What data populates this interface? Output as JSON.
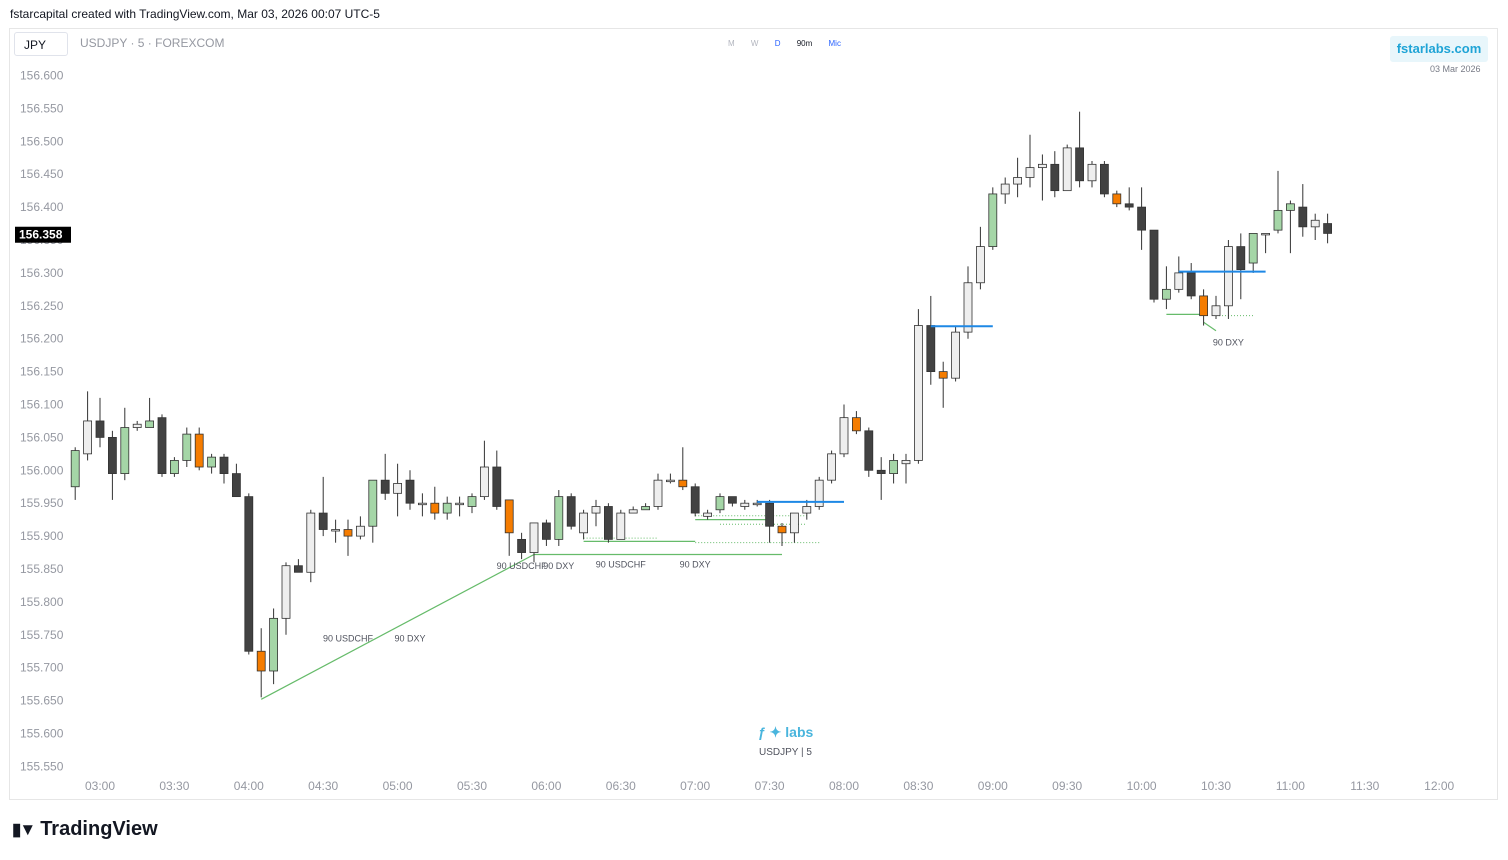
{
  "header": {
    "text": "fstarcapital created with TradingView.com, Mar 03, 2026 00:07 UTC-5"
  },
  "currency_chip": "JPY",
  "symbol_line": "USDJPY · 5 · FOREXCOM",
  "timeframes": [
    "M",
    "W",
    "D",
    "90m",
    "Mic"
  ],
  "brand": {
    "label": "fstarlabs.com",
    "date": "03 Mar 2026",
    "color": "#1fa4d6"
  },
  "watermark": {
    "logo": "ƒ ✦ labs",
    "symbol": "USDJPY | 5"
  },
  "footer_logo": {
    "icon": "tradingview-logo-icon",
    "text": "TradingView"
  },
  "colors": {
    "bull": "#a5d6a7",
    "bear": "#424242",
    "neutral": "#eeeeee",
    "special": "#f57c00",
    "level": "#1e88e5",
    "divergence": "#66bb6a",
    "price_label_bg": "#000000"
  },
  "chart_data": {
    "type": "candlestick",
    "symbol": "USDJPY",
    "interval": "5",
    "ylim": [
      155.55,
      156.6
    ],
    "y_ticks": [
      "156.600",
      "156.550",
      "156.500",
      "156.450",
      "156.400",
      "156.350",
      "156.300",
      "156.250",
      "156.200",
      "156.150",
      "156.100",
      "156.050",
      "156.000",
      "155.950",
      "155.900",
      "155.850",
      "155.800",
      "155.750",
      "155.700",
      "155.650",
      "155.600",
      "155.550"
    ],
    "x_ticks": [
      "03:00",
      "03:30",
      "04:00",
      "04:30",
      "05:00",
      "05:30",
      "06:00",
      "06:30",
      "07:00",
      "07:30",
      "08:00",
      "08:30",
      "09:00",
      "09:30",
      "10:00",
      "10:30",
      "11:00",
      "11:30",
      "12:00"
    ],
    "last_price": "156.358",
    "bars": [
      {
        "t": "02:50",
        "o": 155.975,
        "h": 156.035,
        "l": 155.955,
        "c": 156.03,
        "k": "bull"
      },
      {
        "t": "02:55",
        "o": 156.025,
        "h": 156.12,
        "l": 156.015,
        "c": 156.075,
        "k": "neutral"
      },
      {
        "t": "03:00",
        "o": 156.075,
        "h": 156.11,
        "l": 156.035,
        "c": 156.05,
        "k": "bear"
      },
      {
        "t": "03:05",
        "o": 156.05,
        "h": 156.06,
        "l": 155.955,
        "c": 155.995,
        "k": "bear"
      },
      {
        "t": "03:10",
        "o": 155.995,
        "h": 156.095,
        "l": 155.985,
        "c": 156.065,
        "k": "bull"
      },
      {
        "t": "03:15",
        "o": 156.065,
        "h": 156.075,
        "l": 156.06,
        "c": 156.07,
        "k": "neutral"
      },
      {
        "t": "03:20",
        "o": 156.075,
        "h": 156.11,
        "l": 156.065,
        "c": 156.065,
        "k": "bull"
      },
      {
        "t": "03:25",
        "o": 156.08,
        "h": 156.085,
        "l": 155.99,
        "c": 155.995,
        "k": "bear"
      },
      {
        "t": "03:30",
        "o": 155.995,
        "h": 156.02,
        "l": 155.99,
        "c": 156.015,
        "k": "bull"
      },
      {
        "t": "03:35",
        "o": 156.015,
        "h": 156.065,
        "l": 156.005,
        "c": 156.055,
        "k": "bull"
      },
      {
        "t": "03:40",
        "o": 156.055,
        "h": 156.065,
        "l": 156.0,
        "c": 156.005,
        "k": "special"
      },
      {
        "t": "03:45",
        "o": 156.005,
        "h": 156.025,
        "l": 155.995,
        "c": 156.02,
        "k": "bull"
      },
      {
        "t": "03:50",
        "o": 156.02,
        "h": 156.025,
        "l": 155.98,
        "c": 155.995,
        "k": "bear"
      },
      {
        "t": "03:55",
        "o": 155.995,
        "h": 156.01,
        "l": 155.96,
        "c": 155.96,
        "k": "bear"
      },
      {
        "t": "04:00",
        "o": 155.96,
        "h": 155.965,
        "l": 155.72,
        "c": 155.725,
        "k": "bear"
      },
      {
        "t": "04:05",
        "o": 155.725,
        "h": 155.76,
        "l": 155.655,
        "c": 155.695,
        "k": "special"
      },
      {
        "t": "04:10",
        "o": 155.695,
        "h": 155.79,
        "l": 155.675,
        "c": 155.775,
        "k": "bull"
      },
      {
        "t": "04:15",
        "o": 155.775,
        "h": 155.86,
        "l": 155.75,
        "c": 155.855,
        "k": "neutral"
      },
      {
        "t": "04:20",
        "o": 155.855,
        "h": 155.865,
        "l": 155.845,
        "c": 155.845,
        "k": "bear"
      },
      {
        "t": "04:25",
        "o": 155.845,
        "h": 155.94,
        "l": 155.83,
        "c": 155.935,
        "k": "neutral"
      },
      {
        "t": "04:30",
        "o": 155.935,
        "h": 155.99,
        "l": 155.9,
        "c": 155.91,
        "k": "bear"
      },
      {
        "t": "04:35",
        "o": 155.91,
        "h": 155.925,
        "l": 155.89,
        "c": 155.91,
        "k": "neutral"
      },
      {
        "t": "04:40",
        "o": 155.91,
        "h": 155.925,
        "l": 155.87,
        "c": 155.9,
        "k": "special"
      },
      {
        "t": "04:45",
        "o": 155.9,
        "h": 155.93,
        "l": 155.895,
        "c": 155.915,
        "k": "neutral"
      },
      {
        "t": "04:50",
        "o": 155.915,
        "h": 155.985,
        "l": 155.89,
        "c": 155.985,
        "k": "bull"
      },
      {
        "t": "04:55",
        "o": 155.985,
        "h": 156.025,
        "l": 155.955,
        "c": 155.965,
        "k": "bear"
      },
      {
        "t": "05:00",
        "o": 155.965,
        "h": 156.01,
        "l": 155.93,
        "c": 155.98,
        "k": "neutral"
      },
      {
        "t": "05:05",
        "o": 155.985,
        "h": 156.0,
        "l": 155.94,
        "c": 155.95,
        "k": "bear"
      },
      {
        "t": "05:10",
        "o": 155.95,
        "h": 155.965,
        "l": 155.93,
        "c": 155.95,
        "k": "neutral"
      },
      {
        "t": "05:15",
        "o": 155.95,
        "h": 155.975,
        "l": 155.925,
        "c": 155.935,
        "k": "special"
      },
      {
        "t": "05:20",
        "o": 155.935,
        "h": 155.96,
        "l": 155.925,
        "c": 155.95,
        "k": "bull"
      },
      {
        "t": "05:25",
        "o": 155.95,
        "h": 155.96,
        "l": 155.93,
        "c": 155.95,
        "k": "neutral"
      },
      {
        "t": "05:30",
        "o": 155.945,
        "h": 155.965,
        "l": 155.935,
        "c": 155.96,
        "k": "bull"
      },
      {
        "t": "05:35",
        "o": 155.96,
        "h": 156.045,
        "l": 155.955,
        "c": 156.005,
        "k": "neutral"
      },
      {
        "t": "05:40",
        "o": 156.005,
        "h": 156.03,
        "l": 155.94,
        "c": 155.945,
        "k": "bear"
      },
      {
        "t": "05:45",
        "o": 155.955,
        "h": 155.955,
        "l": 155.87,
        "c": 155.905,
        "k": "special"
      },
      {
        "t": "05:50",
        "o": 155.895,
        "h": 155.905,
        "l": 155.865,
        "c": 155.875,
        "k": "bear"
      },
      {
        "t": "05:55",
        "o": 155.875,
        "h": 155.92,
        "l": 155.86,
        "c": 155.92,
        "k": "neutral"
      },
      {
        "t": "06:00",
        "o": 155.92,
        "h": 155.925,
        "l": 155.885,
        "c": 155.895,
        "k": "bear"
      },
      {
        "t": "06:05",
        "o": 155.895,
        "h": 155.97,
        "l": 155.885,
        "c": 155.96,
        "k": "bull"
      },
      {
        "t": "06:10",
        "o": 155.96,
        "h": 155.965,
        "l": 155.91,
        "c": 155.915,
        "k": "bear"
      },
      {
        "t": "06:15",
        "o": 155.905,
        "h": 155.94,
        "l": 155.895,
        "c": 155.935,
        "k": "neutral"
      },
      {
        "t": "06:20",
        "o": 155.935,
        "h": 155.955,
        "l": 155.915,
        "c": 155.945,
        "k": "neutral"
      },
      {
        "t": "06:25",
        "o": 155.945,
        "h": 155.95,
        "l": 155.89,
        "c": 155.895,
        "k": "bear"
      },
      {
        "t": "06:30",
        "o": 155.895,
        "h": 155.94,
        "l": 155.895,
        "c": 155.935,
        "k": "neutral"
      },
      {
        "t": "06:35",
        "o": 155.935,
        "h": 155.945,
        "l": 155.935,
        "c": 155.94,
        "k": "neutral"
      },
      {
        "t": "06:40",
        "o": 155.94,
        "h": 155.95,
        "l": 155.94,
        "c": 155.945,
        "k": "bull"
      },
      {
        "t": "06:45",
        "o": 155.945,
        "h": 155.995,
        "l": 155.94,
        "c": 155.985,
        "k": "neutral"
      },
      {
        "t": "06:50",
        "o": 155.985,
        "h": 155.995,
        "l": 155.98,
        "c": 155.985,
        "k": "neutral"
      },
      {
        "t": "06:55",
        "o": 155.985,
        "h": 156.035,
        "l": 155.97,
        "c": 155.975,
        "k": "special"
      },
      {
        "t": "07:00",
        "o": 155.975,
        "h": 155.98,
        "l": 155.93,
        "c": 155.935,
        "k": "bear"
      },
      {
        "t": "07:05",
        "o": 155.93,
        "h": 155.94,
        "l": 155.925,
        "c": 155.935,
        "k": "neutral"
      },
      {
        "t": "07:10",
        "o": 155.94,
        "h": 155.965,
        "l": 155.935,
        "c": 155.96,
        "k": "bull"
      },
      {
        "t": "07:15",
        "o": 155.96,
        "h": 155.96,
        "l": 155.945,
        "c": 155.95,
        "k": "bear"
      },
      {
        "t": "07:20",
        "o": 155.95,
        "h": 155.955,
        "l": 155.94,
        "c": 155.945,
        "k": "neutral"
      },
      {
        "t": "07:25",
        "o": 155.95,
        "h": 155.955,
        "l": 155.945,
        "c": 155.95,
        "k": "neutral"
      },
      {
        "t": "07:30",
        "o": 155.95,
        "h": 155.955,
        "l": 155.89,
        "c": 155.915,
        "k": "bear"
      },
      {
        "t": "07:35",
        "o": 155.915,
        "h": 155.92,
        "l": 155.885,
        "c": 155.905,
        "k": "special"
      },
      {
        "t": "07:40",
        "o": 155.905,
        "h": 155.935,
        "l": 155.89,
        "c": 155.935,
        "k": "neutral"
      },
      {
        "t": "07:45",
        "o": 155.935,
        "h": 155.955,
        "l": 155.925,
        "c": 155.945,
        "k": "neutral"
      },
      {
        "t": "07:50",
        "o": 155.945,
        "h": 155.99,
        "l": 155.94,
        "c": 155.985,
        "k": "neutral"
      },
      {
        "t": "07:55",
        "o": 155.985,
        "h": 156.03,
        "l": 155.98,
        "c": 156.025,
        "k": "neutral"
      },
      {
        "t": "08:00",
        "o": 156.025,
        "h": 156.1,
        "l": 156.02,
        "c": 156.08,
        "k": "neutral"
      },
      {
        "t": "08:05",
        "o": 156.08,
        "h": 156.09,
        "l": 156.055,
        "c": 156.06,
        "k": "special"
      },
      {
        "t": "08:10",
        "o": 156.06,
        "h": 156.065,
        "l": 155.99,
        "c": 156.0,
        "k": "bear"
      },
      {
        "t": "08:15",
        "o": 156.0,
        "h": 156.02,
        "l": 155.955,
        "c": 155.995,
        "k": "bear"
      },
      {
        "t": "08:20",
        "o": 155.995,
        "h": 156.025,
        "l": 155.98,
        "c": 156.015,
        "k": "bull"
      },
      {
        "t": "08:25",
        "o": 156.01,
        "h": 156.025,
        "l": 155.98,
        "c": 156.015,
        "k": "neutral"
      },
      {
        "t": "08:30",
        "o": 156.015,
        "h": 156.245,
        "l": 156.01,
        "c": 156.22,
        "k": "neutral"
      },
      {
        "t": "08:35",
        "o": 156.22,
        "h": 156.265,
        "l": 156.13,
        "c": 156.15,
        "k": "bear"
      },
      {
        "t": "08:40",
        "o": 156.15,
        "h": 156.165,
        "l": 156.095,
        "c": 156.14,
        "k": "special"
      },
      {
        "t": "08:45",
        "o": 156.14,
        "h": 156.22,
        "l": 156.135,
        "c": 156.21,
        "k": "neutral"
      },
      {
        "t": "08:50",
        "o": 156.21,
        "h": 156.31,
        "l": 156.2,
        "c": 156.285,
        "k": "neutral"
      },
      {
        "t": "08:55",
        "o": 156.285,
        "h": 156.37,
        "l": 156.275,
        "c": 156.34,
        "k": "neutral"
      },
      {
        "t": "09:00",
        "o": 156.34,
        "h": 156.43,
        "l": 156.335,
        "c": 156.42,
        "k": "bull"
      },
      {
        "t": "09:05",
        "o": 156.42,
        "h": 156.445,
        "l": 156.405,
        "c": 156.435,
        "k": "neutral"
      },
      {
        "t": "09:10",
        "o": 156.435,
        "h": 156.475,
        "l": 156.415,
        "c": 156.445,
        "k": "neutral"
      },
      {
        "t": "09:15",
        "o": 156.445,
        "h": 156.51,
        "l": 156.43,
        "c": 156.46,
        "k": "neutral"
      },
      {
        "t": "09:20",
        "o": 156.46,
        "h": 156.48,
        "l": 156.41,
        "c": 156.465,
        "k": "neutral"
      },
      {
        "t": "09:25",
        "o": 156.465,
        "h": 156.485,
        "l": 156.415,
        "c": 156.425,
        "k": "bear"
      },
      {
        "t": "09:30",
        "o": 156.425,
        "h": 156.495,
        "l": 156.425,
        "c": 156.49,
        "k": "neutral"
      },
      {
        "t": "09:35",
        "o": 156.49,
        "h": 156.545,
        "l": 156.43,
        "c": 156.44,
        "k": "bear"
      },
      {
        "t": "09:40",
        "o": 156.44,
        "h": 156.47,
        "l": 156.43,
        "c": 156.465,
        "k": "neutral"
      },
      {
        "t": "09:45",
        "o": 156.465,
        "h": 156.47,
        "l": 156.415,
        "c": 156.42,
        "k": "bear"
      },
      {
        "t": "09:50",
        "o": 156.42,
        "h": 156.425,
        "l": 156.4,
        "c": 156.405,
        "k": "special"
      },
      {
        "t": "09:55",
        "o": 156.405,
        "h": 156.43,
        "l": 156.395,
        "c": 156.4,
        "k": "bear"
      },
      {
        "t": "10:00",
        "o": 156.4,
        "h": 156.43,
        "l": 156.335,
        "c": 156.365,
        "k": "bear"
      },
      {
        "t": "10:05",
        "o": 156.365,
        "h": 156.365,
        "l": 156.255,
        "c": 156.26,
        "k": "bear"
      },
      {
        "t": "10:10",
        "o": 156.26,
        "h": 156.31,
        "l": 156.245,
        "c": 156.275,
        "k": "bull"
      },
      {
        "t": "10:15",
        "o": 156.275,
        "h": 156.325,
        "l": 156.27,
        "c": 156.3,
        "k": "neutral"
      },
      {
        "t": "10:20",
        "o": 156.3,
        "h": 156.315,
        "l": 156.26,
        "c": 156.265,
        "k": "bear"
      },
      {
        "t": "10:25",
        "o": 156.265,
        "h": 156.275,
        "l": 156.22,
        "c": 156.235,
        "k": "special"
      },
      {
        "t": "10:30",
        "o": 156.235,
        "h": 156.265,
        "l": 156.23,
        "c": 156.25,
        "k": "neutral"
      },
      {
        "t": "10:35",
        "o": 156.25,
        "h": 156.35,
        "l": 156.23,
        "c": 156.34,
        "k": "neutral"
      },
      {
        "t": "10:40",
        "o": 156.34,
        "h": 156.36,
        "l": 156.26,
        "c": 156.305,
        "k": "bear"
      },
      {
        "t": "10:45",
        "o": 156.315,
        "h": 156.36,
        "l": 156.3,
        "c": 156.36,
        "k": "bull"
      },
      {
        "t": "10:50",
        "o": 156.36,
        "h": 156.36,
        "l": 156.33,
        "c": 156.36,
        "k": "neutral"
      },
      {
        "t": "10:55",
        "o": 156.365,
        "h": 156.455,
        "l": 156.36,
        "c": 156.395,
        "k": "bull"
      },
      {
        "t": "11:00",
        "o": 156.395,
        "h": 156.41,
        "l": 156.33,
        "c": 156.405,
        "k": "bull"
      },
      {
        "t": "11:05",
        "o": 156.4,
        "h": 156.435,
        "l": 156.355,
        "c": 156.37,
        "k": "bear"
      },
      {
        "t": "11:10",
        "o": 156.37,
        "h": 156.39,
        "l": 156.35,
        "c": 156.38,
        "k": "neutral"
      },
      {
        "t": "11:15",
        "o": 156.375,
        "h": 156.39,
        "l": 156.345,
        "c": 156.36,
        "k": "bear"
      }
    ],
    "levels": [
      {
        "from": "07:25",
        "to": "08:00",
        "price": 155.952
      },
      {
        "from": "08:35",
        "to": "09:00",
        "price": 156.219
      },
      {
        "from": "10:15",
        "to": "10:50",
        "price": 156.302
      }
    ],
    "divergences": [
      {
        "points": [
          {
            "t": "04:05",
            "p": 155.652
          },
          {
            "t": "05:55",
            "p": 155.872
          }
        ]
      },
      {
        "points": [
          {
            "t": "05:55",
            "p": 155.872
          },
          {
            "t": "07:35",
            "p": 155.872
          }
        ]
      },
      {
        "points": [
          {
            "t": "06:15",
            "p": 155.892
          },
          {
            "t": "07:00",
            "p": 155.892
          }
        ]
      },
      {
        "points": [
          {
            "t": "07:00",
            "p": 155.925
          },
          {
            "t": "07:30",
            "p": 155.925
          }
        ]
      },
      {
        "points": [
          {
            "t": "10:10",
            "p": 156.237
          },
          {
            "t": "10:25",
            "p": 156.237
          }
        ]
      },
      {
        "points": [
          {
            "t": "10:25",
            "p": 156.225
          },
          {
            "t": "10:30",
            "p": 156.212
          }
        ]
      }
    ],
    "dotted_lines": [
      {
        "from": "06:15",
        "to": "06:45",
        "price": 155.897
      },
      {
        "from": "07:00",
        "to": "07:45",
        "price": 155.931
      },
      {
        "from": "07:10",
        "to": "07:45",
        "price": 155.918
      },
      {
        "from": "07:00",
        "to": "07:50",
        "price": 155.89
      },
      {
        "from": "10:30",
        "to": "10:45",
        "price": 156.235
      }
    ],
    "annotations": [
      {
        "text": "90 USDCHF",
        "t": "04:40",
        "p": 155.74
      },
      {
        "text": "90 DXY",
        "t": "05:05",
        "p": 155.74
      },
      {
        "text": "90 USDCHF",
        "t": "05:50",
        "p": 155.85
      },
      {
        "text": "90 DXY",
        "t": "06:05",
        "p": 155.85
      },
      {
        "text": "90 USDCHF",
        "t": "06:30",
        "p": 155.852
      },
      {
        "text": "90 DXY",
        "t": "07:00",
        "p": 155.852
      },
      {
        "text": "90 DXY",
        "t": "10:35",
        "p": 156.19
      }
    ]
  }
}
